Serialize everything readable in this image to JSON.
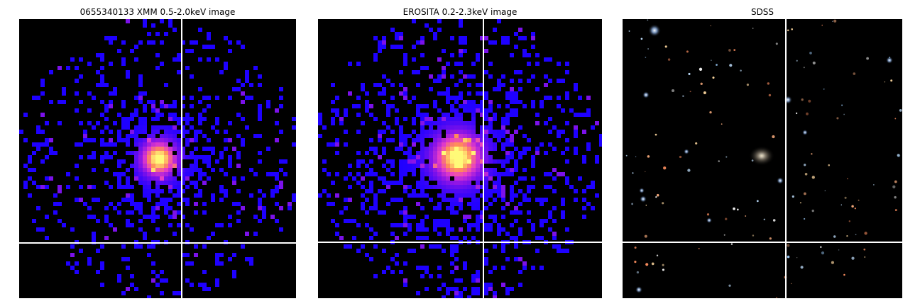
{
  "panels": [
    {
      "title": "0655340133 XMM 0.5-2.0keV image"
    },
    {
      "title": "EROSITA 0.2-2.3keV image"
    },
    {
      "title": "SDSS"
    }
  ]
}
